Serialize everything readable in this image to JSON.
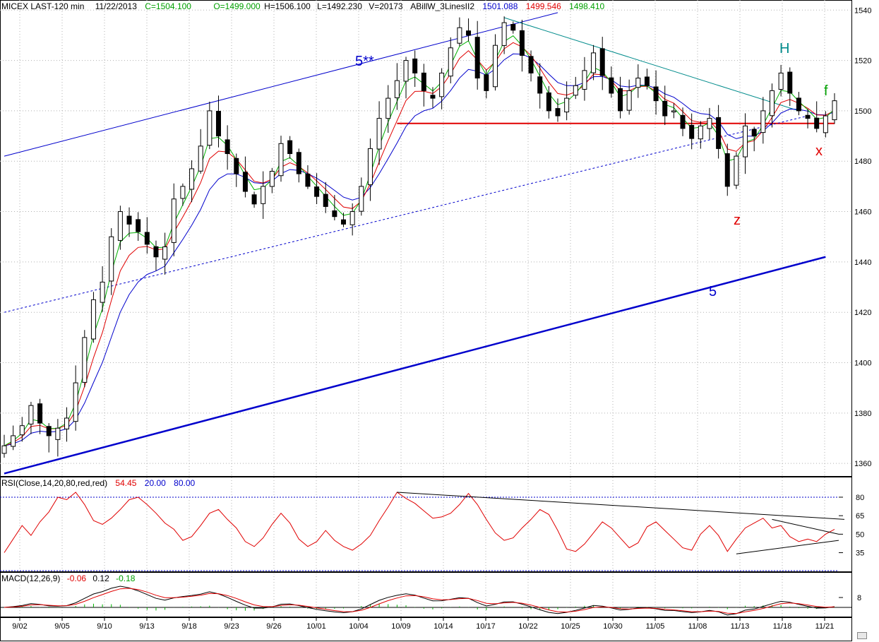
{
  "header": {
    "symbol": "MICEX LAST-120 min",
    "date": "11/22/2013",
    "close": "C=1504.100",
    "open": "O=1499.000",
    "high": "H=1506.100",
    "low": "L=1492.230",
    "volume": "V=20173",
    "indicator": "ABillW_3LinesII2",
    "ind_blue": "1501.088",
    "ind_red": "1499.546",
    "ind_green": "1498.410"
  },
  "rsi_header": {
    "label": "RSI(Close,14,20,80,red,red)",
    "value": "54.45",
    "low": "20.00",
    "high": "80.00"
  },
  "macd_header": {
    "label": "MACD(12,26,9)",
    "v1": "-0.06",
    "v2": "0.12",
    "v3": "-0.18"
  },
  "annotations": {
    "wave_5_star": "5**",
    "wave_5": "5",
    "H": "H",
    "f": "f",
    "x": "x",
    "z": "z"
  },
  "colors": {
    "red": "#e00000",
    "blue": "#0000cc",
    "green": "#00b000",
    "teal": "#008b8b",
    "grid": "#b0b0b0"
  },
  "chart_data": [
    {
      "type": "candlestick",
      "title": "MICEX LAST-120 min",
      "x_ticks": [
        "9/02",
        "9/05",
        "9/10",
        "9/13",
        "9/18",
        "9/23",
        "9/26",
        "10/01",
        "10/04",
        "10/09",
        "10/14",
        "10/17",
        "10/22",
        "10/25",
        "10/30",
        "11/05",
        "11/08",
        "11/13",
        "11/18",
        "11/21"
      ],
      "y_ticks": [
        1360,
        1380,
        1400,
        1420,
        1440,
        1460,
        1480,
        1500,
        1520,
        1540
      ],
      "ylim": [
        1355,
        1544
      ],
      "close_path": [
        [
          0,
          1367
        ],
        [
          1,
          1371
        ],
        [
          2,
          1375
        ],
        [
          3,
          1383
        ],
        [
          4,
          1376
        ],
        [
          5,
          1371
        ],
        [
          6,
          1374
        ],
        [
          7,
          1378
        ],
        [
          8,
          1392
        ],
        [
          9,
          1410
        ],
        [
          10,
          1425
        ],
        [
          11,
          1432
        ],
        [
          12,
          1450
        ],
        [
          13,
          1460
        ],
        [
          14,
          1455
        ],
        [
          15,
          1452
        ],
        [
          16,
          1447
        ],
        [
          17,
          1442
        ],
        [
          18,
          1446
        ],
        [
          19,
          1465
        ],
        [
          20,
          1470
        ],
        [
          21,
          1477
        ],
        [
          22,
          1486
        ],
        [
          23,
          1500
        ],
        [
          24,
          1490
        ],
        [
          25,
          1483
        ],
        [
          26,
          1475
        ],
        [
          27,
          1468
        ],
        [
          28,
          1463
        ],
        [
          29,
          1470
        ],
        [
          30,
          1476
        ],
        [
          31,
          1487
        ],
        [
          32,
          1483
        ],
        [
          33,
          1475
        ],
        [
          34,
          1470
        ],
        [
          35,
          1466
        ],
        [
          36,
          1462
        ],
        [
          37,
          1458
        ],
        [
          38,
          1455
        ],
        [
          39,
          1460
        ],
        [
          40,
          1470
        ],
        [
          41,
          1485
        ],
        [
          42,
          1497
        ],
        [
          43,
          1505
        ],
        [
          44,
          1512
        ],
        [
          45,
          1520
        ],
        [
          46,
          1515
        ],
        [
          47,
          1508
        ],
        [
          48,
          1505
        ],
        [
          49,
          1515
        ],
        [
          50,
          1525
        ],
        [
          51,
          1533
        ],
        [
          52,
          1530
        ],
        [
          53,
          1513
        ],
        [
          54,
          1508
        ],
        [
          55,
          1526
        ],
        [
          56,
          1535
        ],
        [
          57,
          1532
        ],
        [
          58,
          1522
        ],
        [
          59,
          1515
        ],
        [
          60,
          1507
        ],
        [
          61,
          1500
        ],
        [
          62,
          1498
        ],
        [
          63,
          1505
        ],
        [
          64,
          1510
        ],
        [
          65,
          1516
        ],
        [
          66,
          1523
        ],
        [
          67,
          1514
        ],
        [
          68,
          1507
        ],
        [
          69,
          1500
        ],
        [
          70,
          1508
        ],
        [
          71,
          1513
        ],
        [
          72,
          1510
        ],
        [
          73,
          1504
        ],
        [
          74,
          1498
        ],
        [
          75,
          1500
        ],
        [
          76,
          1493
        ],
        [
          77,
          1489
        ],
        [
          78,
          1494
        ],
        [
          79,
          1497
        ],
        [
          80,
          1485
        ],
        [
          81,
          1470
        ],
        [
          82,
          1482
        ],
        [
          83,
          1494
        ],
        [
          84,
          1490
        ],
        [
          85,
          1500
        ],
        [
          86,
          1508
        ],
        [
          87,
          1515
        ],
        [
          88,
          1507
        ],
        [
          89,
          1500
        ],
        [
          90,
          1497
        ],
        [
          91,
          1493
        ],
        [
          92,
          1498
        ],
        [
          93,
          1504
        ]
      ],
      "bars": 94,
      "series": [
        {
          "name": "1501.088",
          "color": "blue"
        },
        {
          "name": "1499.546",
          "color": "red"
        },
        {
          "name": "1498.410",
          "color": "green"
        }
      ],
      "lines": [
        {
          "name": "resistance",
          "color": "red",
          "y": 1495,
          "from_bar": 44,
          "to_bar": 94
        },
        {
          "name": "channel-top",
          "color": "blue",
          "from": [
            0,
            1482
          ],
          "to": [
            62,
            1539
          ]
        },
        {
          "name": "channel-mid",
          "color": "blue",
          "dashed": true,
          "from": [
            0,
            1420
          ],
          "to": [
            90,
            1498
          ]
        },
        {
          "name": "channel-bottom",
          "color": "blue",
          "from": [
            0,
            1356
          ],
          "to": [
            92,
            1442
          ]
        },
        {
          "name": "downtrend",
          "color": "teal",
          "from": [
            56,
            1537
          ],
          "to": [
            89,
            1500
          ]
        }
      ]
    },
    {
      "type": "line",
      "title": "RSI(Close,14,20,80,red,red)",
      "y_ticks": [
        35,
        50,
        65,
        80
      ],
      "values": [
        35,
        46,
        57,
        49,
        60,
        68,
        80,
        78,
        84,
        74,
        61,
        58,
        63,
        70,
        78,
        80,
        74,
        67,
        59,
        54,
        45,
        48,
        57,
        67,
        70,
        62,
        55,
        44,
        40,
        47,
        58,
        67,
        59,
        46,
        40,
        44,
        53,
        45,
        40,
        37,
        42,
        49,
        61,
        72,
        84,
        79,
        75,
        69,
        63,
        64,
        67,
        74,
        83,
        74,
        62,
        51,
        45,
        47,
        55,
        62,
        70,
        66,
        53,
        38,
        36,
        42,
        51,
        60,
        55,
        47,
        39,
        43,
        56,
        60,
        53,
        46,
        39,
        37,
        50,
        57,
        49,
        36,
        46,
        55,
        59,
        63,
        55,
        57,
        48,
        44,
        46,
        44,
        50,
        54
      ],
      "value_label": "54.45"
    },
    {
      "type": "line",
      "title": "MACD(12,26,9)",
      "y_ticks": [
        8
      ],
      "values": [
        -0.06,
        0.12,
        -0.18
      ]
    }
  ]
}
